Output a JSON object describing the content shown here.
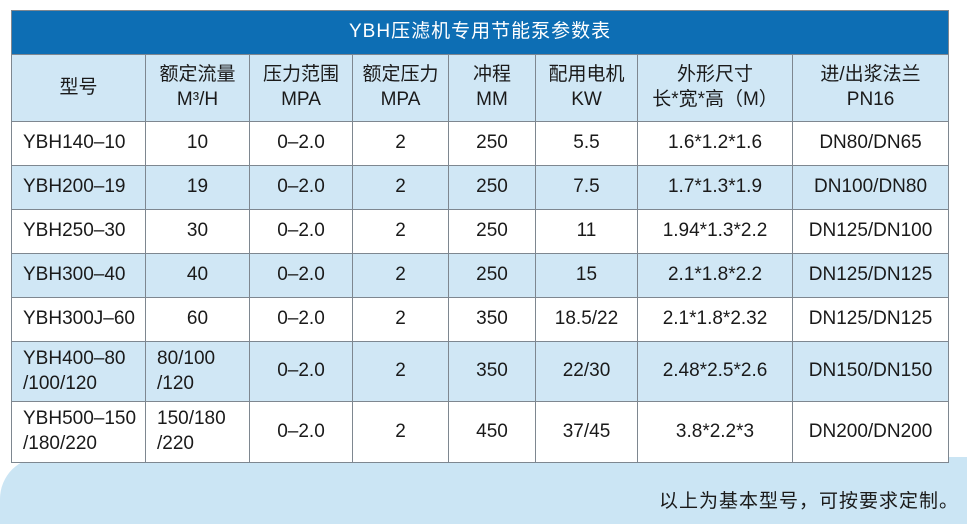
{
  "table": {
    "title": "YBH压滤机专用节能泵参数表",
    "columns": [
      {
        "label": "型号",
        "sub": ""
      },
      {
        "label": "额定流量",
        "sub": "M³/H"
      },
      {
        "label": "压力范围",
        "sub": "MPA"
      },
      {
        "label": "额定压力",
        "sub": "MPA"
      },
      {
        "label": "冲程",
        "sub": "MM"
      },
      {
        "label": "配用电机",
        "sub": "KW"
      },
      {
        "label": "外形尺寸",
        "sub": "长*宽*高（M）"
      },
      {
        "label": "进/出浆法兰",
        "sub": "PN16"
      }
    ],
    "rows": [
      {
        "cells": [
          "YBH140–10",
          "10",
          "0–2.0",
          "2",
          "250",
          "5.5",
          "1.6*1.2*1.6",
          "DN80/DN65"
        ]
      },
      {
        "cells": [
          "YBH200–19",
          "19",
          "0–2.0",
          "2",
          "250",
          "7.5",
          "1.7*1.3*1.9",
          "DN100/DN80"
        ]
      },
      {
        "cells": [
          "YBH250–30",
          "30",
          "0–2.0",
          "2",
          "250",
          "11",
          "1.94*1.3*2.2",
          "DN125/DN100"
        ]
      },
      {
        "cells": [
          "YBH300–40",
          "40",
          "0–2.0",
          "2",
          "250",
          "15",
          "2.1*1.8*2.2",
          "DN125/DN125"
        ]
      },
      {
        "cells": [
          "YBH300J–60",
          "60",
          "0–2.0",
          "2",
          "350",
          "18.5/22",
          "2.1*1.8*2.32",
          "DN125/DN125"
        ]
      },
      {
        "cells": [
          "YBH400–80\n/100/120",
          "80/100\n/120",
          "0–2.0",
          "2",
          "350",
          "22/30",
          "2.48*2.5*2.6",
          "DN150/DN150"
        ]
      },
      {
        "cells": [
          "YBH500–150\n/180/220",
          "150/180\n/220",
          "0–2.0",
          "2",
          "450",
          "37/45",
          "3.8*2.2*3",
          "DN200/DN200"
        ]
      }
    ]
  },
  "footer": {
    "note": "以上为基本型号，可按要求定制。"
  },
  "colors": {
    "title_bar": "#0D6EB4",
    "title_text": "#FFFFFF",
    "header_fill": "#D0E7F5",
    "row_stripe": "#D0E7F5",
    "bottom_band": "#CBE5F4",
    "border": "#7E8790",
    "text": "#1A1A1A"
  }
}
